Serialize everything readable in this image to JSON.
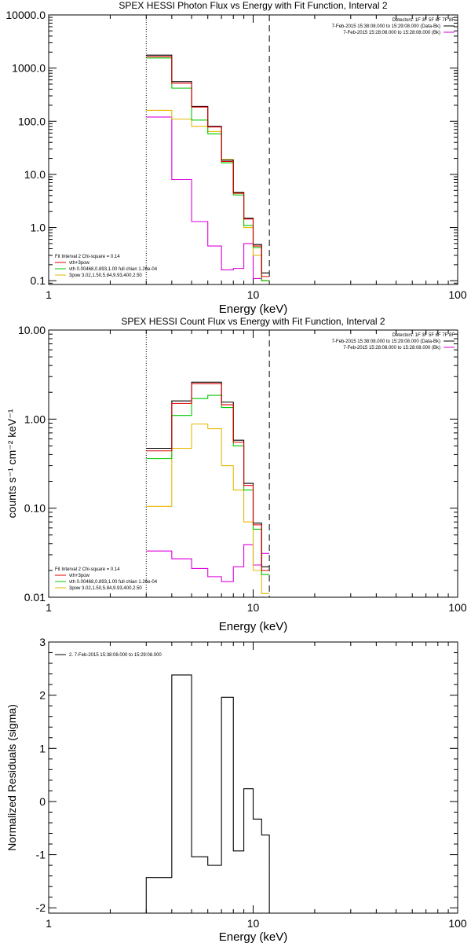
{
  "chart_data": [
    {
      "type": "line",
      "title": "SPEX HESSI Photon Flux vs Energy with Fit Function, Interval 2",
      "xlabel": "Energy (keV)",
      "ylabel": "",
      "xscale": "log",
      "yscale": "log",
      "xlim": [
        1,
        100
      ],
      "ylim": [
        0.085,
        10000
      ],
      "xticks": [
        {
          "v": 1,
          "label": "1"
        },
        {
          "v": 10,
          "label": "10"
        },
        {
          "v": 100,
          "label": "100"
        }
      ],
      "yticks": [
        {
          "v": 0.1,
          "label": "0.1"
        },
        {
          "v": 1,
          "label": "1.0"
        },
        {
          "v": 10,
          "label": "10.0"
        },
        {
          "v": 100,
          "label": "100.0"
        },
        {
          "v": 1000,
          "label": "1000.0"
        },
        {
          "v": 10000,
          "label": "10000.0"
        }
      ],
      "vlines": [
        {
          "x": 3.0,
          "style": "dotted"
        },
        {
          "x": 12.0,
          "style": "dashed"
        }
      ],
      "edges": [
        3.0,
        4.0,
        5.0,
        6.0,
        7.0,
        8.0,
        9.0,
        10.0,
        11.0,
        12.0
      ],
      "series": [
        {
          "name": "",
          "color": "#000000",
          "values": [
            1750,
            560,
            190,
            80,
            18.5,
            4.6,
            1.5,
            0.48,
            0.14
          ]
        },
        {
          "name": "",
          "color": "#dd0000",
          "values": [
            1650,
            520,
            185,
            78,
            17.5,
            4.4,
            1.45,
            0.45,
            0.12
          ]
        },
        {
          "name": "",
          "color": "#00c800",
          "values": [
            1550,
            420,
            105,
            58,
            16.5,
            4.1,
            1.1,
            0.42,
            0.1
          ]
        },
        {
          "name": "",
          "color": "#e6b800",
          "values": [
            160,
            110,
            80,
            64,
            19,
            4.5,
            1.0,
            0.3,
            0.1
          ]
        },
        {
          "name": "",
          "color": "#dd00dd",
          "values": [
            120,
            8,
            1.3,
            0.45,
            0.16,
            0.17,
            0.5,
            0.11,
            0.1
          ]
        }
      ],
      "legend_right": [
        {
          "text": "Detectors: 1F 3F 5F 6F 7F 8F",
          "color": ""
        },
        {
          "text": "7-Feb-2015 15:38:08.000 to 15:29:08.000 (Data-Bk)",
          "color": "#000000"
        },
        {
          "text": "7-Feb-2015 15:28:08.000 to 15:28:08.000 (Bk)",
          "color": "#dd00dd"
        }
      ],
      "legend_left": [
        {
          "text": "Fit Interval 2    Chi-square = 0.14",
          "color": ""
        },
        {
          "text": "vth+3pow",
          "color": "#dd0000"
        },
        {
          "text": "vth 0.00468,0.893,1.00   full chian 1.26e-04",
          "color": "#00c800"
        },
        {
          "text": "3pow 3.02,1.50,5.84,9.93,400,2.50",
          "color": "#e6b800"
        }
      ]
    },
    {
      "type": "line",
      "title": "SPEX HESSI Count Flux vs Energy with Fit Function, Interval 2",
      "xlabel": "Energy (keV)",
      "ylabel": "counts s⁻¹ cm⁻² keV⁻¹",
      "xscale": "log",
      "yscale": "log",
      "xlim": [
        1,
        100
      ],
      "ylim": [
        0.01,
        10
      ],
      "xticks": [
        {
          "v": 1,
          "label": "1"
        },
        {
          "v": 10,
          "label": "10"
        },
        {
          "v": 100,
          "label": "100"
        }
      ],
      "yticks": [
        {
          "v": 0.01,
          "label": "0.01"
        },
        {
          "v": 0.1,
          "label": "0.10"
        },
        {
          "v": 1,
          "label": "1.00"
        },
        {
          "v": 10,
          "label": "10.00"
        }
      ],
      "vlines": [
        {
          "x": 3.0,
          "style": "dotted"
        },
        {
          "x": 12.0,
          "style": "dashed"
        }
      ],
      "edges": [
        3.0,
        4.0,
        5.0,
        6.0,
        7.0,
        8.0,
        9.0,
        10.0,
        11.0,
        12.0
      ],
      "series": [
        {
          "name": "",
          "color": "#000000",
          "values": [
            0.47,
            1.6,
            2.6,
            2.6,
            1.55,
            0.58,
            0.19,
            0.068,
            0.022
          ]
        },
        {
          "name": "",
          "color": "#dd0000",
          "values": [
            0.44,
            1.5,
            2.5,
            2.5,
            1.45,
            0.55,
            0.18,
            0.065,
            0.02
          ]
        },
        {
          "name": "",
          "color": "#00c800",
          "values": [
            0.36,
            1.1,
            1.7,
            1.85,
            1.35,
            0.5,
            0.16,
            0.058,
            0.018
          ]
        },
        {
          "name": "",
          "color": "#e6b800",
          "values": [
            0.105,
            0.47,
            0.88,
            0.78,
            0.3,
            0.16,
            0.07,
            0.02,
            0.011
          ]
        },
        {
          "name": "",
          "color": "#dd00dd",
          "values": [
            0.033,
            0.027,
            0.021,
            0.017,
            0.015,
            0.022,
            0.039,
            0.023,
            0.031
          ]
        }
      ],
      "legend_right": [
        {
          "text": "Detectors: 1F 3F 5F 6F 7F 8F",
          "color": ""
        },
        {
          "text": "7-Feb-2015 15:38:08.000 to 15:29:08.000 (Data-Bk)",
          "color": "#000000"
        },
        {
          "text": "7-Feb-2015 15:28:08.000 to 15:28:08.000 (Bk)",
          "color": "#dd00dd"
        }
      ],
      "legend_left": [
        {
          "text": "Fit Interval 2    Chi-square = 0.14",
          "color": ""
        },
        {
          "text": "vth+3pow",
          "color": "#dd0000"
        },
        {
          "text": "vth 0.00468,0.893,1.00   full chian 1.26e-04",
          "color": "#00c800"
        },
        {
          "text": "3pow 3.02,1.50,5.84,9.93,400,2.50",
          "color": "#e6b800"
        }
      ]
    },
    {
      "type": "line",
      "title": "",
      "xlabel": "Energy (keV)",
      "ylabel": "Normalized Residuals (sigma)",
      "xscale": "log",
      "yscale": "linear",
      "xlim": [
        1,
        100
      ],
      "ylim": [
        -2.1,
        3
      ],
      "xticks": [
        {
          "v": 1,
          "label": "1"
        },
        {
          "v": 10,
          "label": "10"
        },
        {
          "v": 100,
          "label": "100"
        }
      ],
      "yticks": [
        {
          "v": -2,
          "label": "-2"
        },
        {
          "v": -1,
          "label": "-1"
        },
        {
          "v": 0,
          "label": "0"
        },
        {
          "v": 1,
          "label": "1"
        },
        {
          "v": 2,
          "label": "2"
        },
        {
          "v": 3,
          "label": "3"
        }
      ],
      "vlines": [],
      "edges": [
        3.0,
        4.0,
        5.0,
        6.0,
        7.0,
        8.0,
        9.0,
        10.0,
        11.0,
        12.0
      ],
      "series": [
        {
          "name": "",
          "color": "#000000",
          "values": [
            -1.43,
            2.38,
            -1.04,
            -1.2,
            1.96,
            -0.93,
            0.24,
            -0.33,
            -0.63
          ]
        }
      ],
      "legend_right": [],
      "legend_left": [
        {
          "text": "2.  7-Feb-2015 15:38:08.000 to 15:29:08.000",
          "color": "#000000"
        }
      ]
    }
  ]
}
